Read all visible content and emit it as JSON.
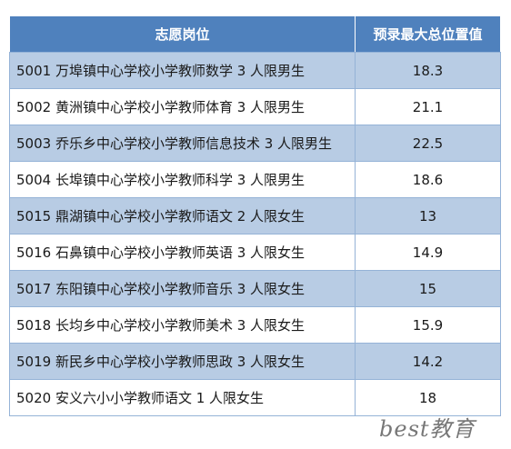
{
  "table": {
    "headers": {
      "position": "志愿岗位",
      "max_rank": "预录最大总位置值"
    },
    "rows": [
      {
        "position": "5001 万埠镇中心学校小学教师数学 3 人限男生",
        "value": "18.3"
      },
      {
        "position": "5002 黄洲镇中心学校小学教师体育 3 人限男生",
        "value": "21.1"
      },
      {
        "position": "5003 乔乐乡中心学校小学教师信息技术 3 人限男生",
        "value": "22.5"
      },
      {
        "position": "5004 长埠镇中心学校小学教师科学 3 人限男生",
        "value": "18.6"
      },
      {
        "position": "5015 鼎湖镇中心学校小学教师语文 2 人限女生",
        "value": "13"
      },
      {
        "position": "5016 石鼻镇中心学校小学教师英语 3 人限女生",
        "value": "14.9"
      },
      {
        "position": "5017 东阳镇中心学校小学教师音乐 3 人限女生",
        "value": "15"
      },
      {
        "position": "5018 长均乡中心学校小学教师美术 3 人限女生",
        "value": "15.9"
      },
      {
        "position": "5019 新民乡中心学校小学教师思政 3 人限女生",
        "value": "14.2"
      },
      {
        "position": "5020 安义六小小学教师语文 1 人限女生",
        "value": "18"
      }
    ]
  },
  "watermark": "best教育",
  "colors": {
    "header_bg": "#4f81bd",
    "band_bg": "#b8cce4",
    "border": "#95b3d7"
  }
}
